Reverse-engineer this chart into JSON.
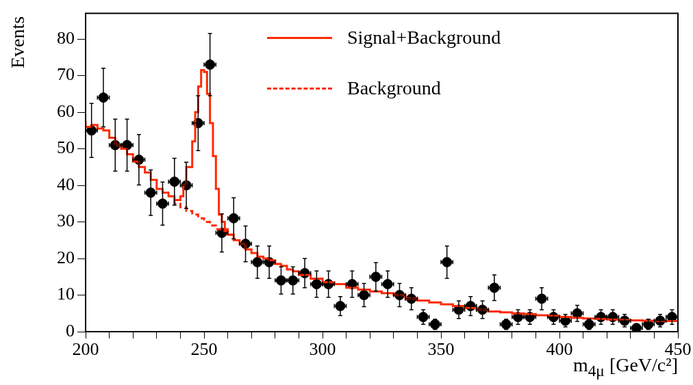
{
  "chart_data": {
    "type": "scatter",
    "xlabel": "m$_{4μ}$ [GeV/c²]",
    "ylabel": "Events",
    "xlim": [
      200,
      450
    ],
    "ylim": [
      0,
      87
    ],
    "xticks": [
      200,
      {
        "value": 210,
        "label": null
      },
      {
        "value": 220,
        "label": null
      },
      {
        "value": 230,
        "label": null
      },
      {
        "value": 240,
        "label": null
      },
      250,
      {
        "value": 260,
        "label": null
      },
      {
        "value": 270,
        "label": null
      },
      {
        "value": 280,
        "label": null
      },
      {
        "value": 290,
        "label": null
      },
      300,
      {
        "value": 310,
        "label": null
      },
      {
        "value": 320,
        "label": null
      },
      {
        "value": 330,
        "label": null
      },
      {
        "value": 340,
        "label": null
      },
      350,
      {
        "value": 360,
        "label": null
      },
      {
        "value": 370,
        "label": null
      },
      {
        "value": 380,
        "label": null
      },
      {
        "value": 390,
        "label": null
      },
      400,
      {
        "value": 410,
        "label": null
      },
      {
        "value": 420,
        "label": null
      },
      {
        "value": 430,
        "label": null
      },
      {
        "value": 440,
        "label": null
      },
      450
    ],
    "yticks": [
      0,
      10,
      20,
      30,
      40,
      50,
      60,
      70,
      80
    ],
    "legend": "top",
    "series": [
      {
        "name": "Signal+Background",
        "type": "step",
        "color": "#ff2a00",
        "line_style": "solid",
        "x": [
          200,
          202.5,
          205,
          207.5,
          210,
          212.5,
          215,
          217.5,
          220,
          222.5,
          225,
          227.5,
          230,
          232.5,
          235,
          237.5,
          240,
          241.25,
          242.5,
          245,
          246.25,
          247.5,
          248.75,
          250,
          251.25,
          252.5,
          253.75,
          255,
          256.25,
          257.5,
          258.75,
          260,
          262.5,
          265,
          267.5,
          270,
          272.5,
          275,
          277.5,
          280,
          282.5,
          285,
          287.5,
          290,
          295,
          300,
          305,
          310,
          315,
          320,
          325,
          330,
          335,
          340,
          345,
          350,
          355,
          360,
          365,
          370,
          375,
          380,
          385,
          390,
          395,
          400,
          405,
          410,
          415,
          420,
          425,
          430,
          435,
          440,
          445,
          450
        ],
        "values": [
          57.5,
          56,
          56.5,
          55.5,
          55,
          53,
          51,
          50,
          48.5,
          46.5,
          45,
          43.5,
          41.5,
          39,
          38,
          37,
          36,
          37,
          40,
          45,
          52,
          60,
          67,
          71.5,
          71,
          65,
          57,
          48,
          39,
          32,
          30,
          28,
          26.5,
          25,
          24,
          22.5,
          21.5,
          20.5,
          20,
          19.5,
          18.5,
          18,
          17,
          16.5,
          15.5,
          14.5,
          13.5,
          13,
          12,
          11.5,
          11,
          10.5,
          10,
          9,
          8.5,
          8,
          7.5,
          7,
          6.5,
          6,
          5.5,
          5.3,
          5,
          4.8,
          4.5,
          4.3,
          4,
          3.8,
          3.6,
          3.5,
          3.3,
          3.2,
          3.1,
          3,
          2.9,
          2.9
        ]
      },
      {
        "name": "Background",
        "type": "step",
        "color": "#ff2a00",
        "line_style": "dashed",
        "x": [
          237.5,
          240,
          242.5,
          245,
          247.5,
          250,
          252.5,
          255,
          257.5,
          260,
          262.5
        ],
        "values": [
          36,
          35,
          34,
          33,
          32,
          31,
          30,
          29,
          28,
          27.5,
          26.5
        ]
      },
      {
        "color": "#000000",
        "marker": "circle",
        "x": [
          202.5,
          207.5,
          212.5,
          217.5,
          222.5,
          227.5,
          232.5,
          237.5,
          242.5,
          247.5,
          252.5,
          257.5,
          262.5,
          267.5,
          272.5,
          277.5,
          282.5,
          287.5,
          292.5,
          297.5,
          302.5,
          307.5,
          312.5,
          317.5,
          322.5,
          327.5,
          332.5,
          337.5,
          342.5,
          347.5,
          352.5,
          357.5,
          362.5,
          367.5,
          372.5,
          377.5,
          382.5,
          387.5,
          392.5,
          397.5,
          402.5,
          407.5,
          412.5,
          417.5,
          422.5,
          427.5,
          432.5,
          437.5,
          442.5,
          447.5
        ],
        "values": [
          55,
          64,
          51,
          51,
          47,
          38,
          35,
          41,
          40,
          57,
          73,
          27,
          31,
          24,
          19,
          19,
          14,
          14,
          16,
          13,
          13,
          7,
          13,
          10,
          15,
          13,
          10,
          9,
          4,
          2,
          19,
          6,
          7,
          6,
          12,
          2,
          4,
          4,
          9,
          4,
          3,
          5,
          2,
          4,
          4,
          3,
          1,
          2,
          3,
          4
        ],
        "errors": [
          7.4,
          8,
          7.1,
          7.1,
          6.9,
          6.2,
          5.9,
          6.4,
          6.3,
          7.5,
          8.5,
          5.2,
          5.6,
          4.9,
          4.4,
          4.4,
          3.7,
          3.7,
          4,
          3.6,
          3.6,
          2.6,
          3.6,
          3.2,
          3.9,
          3.6,
          3.2,
          3,
          2,
          1.4,
          4.4,
          2.4,
          2.6,
          2.4,
          3.5,
          1.4,
          2,
          2,
          3,
          2,
          1.7,
          2.2,
          1.4,
          2,
          2,
          1.7,
          null,
          1.4,
          1.7,
          2
        ],
        "xerrors": [
          2.5,
          2.5,
          2.5,
          2.5,
          2.5,
          2.5,
          2.5,
          2.5,
          2.5,
          2.5,
          2.5,
          2.5,
          2.5,
          2.5,
          2.5,
          2.5,
          2.5,
          2.5,
          2.5,
          2.5,
          2.5,
          2.5,
          2.5,
          2.5,
          2.5,
          2.5,
          2.5,
          2.5,
          2.5,
          2.5,
          2.5,
          2.5,
          2.5,
          2.5,
          2.5,
          2.5,
          2.5,
          2.5,
          2.5,
          2.5,
          2.5,
          2.5,
          2.5,
          2.5,
          2.5,
          2.5,
          2.5,
          2.5,
          2.5,
          2.5
        ]
      }
    ]
  }
}
